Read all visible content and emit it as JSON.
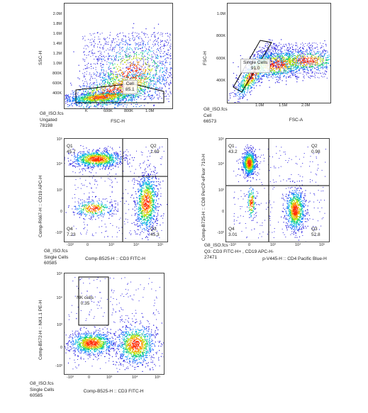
{
  "panels": [
    {
      "xlabel": "FSC-H",
      "ylabel": "SSC-H",
      "xticks": [
        "K",
        "600K",
        "800K",
        "1.0M"
      ],
      "yticks": [
        "2.0M",
        "1.8M",
        "1.6M",
        "1.4M",
        "1.2M",
        "1.0M",
        "800K",
        "600K",
        "400K"
      ],
      "gate": {
        "name": "Cell",
        "value": "85.1"
      },
      "info": [
        "G8_ISO.fcs",
        "Ungated",
        "78198"
      ]
    },
    {
      "xlabel": "FSC-A",
      "ylabel": "FSC-H",
      "xticks": [
        "1.0M",
        "1.5M",
        "2.0M"
      ],
      "yticks": [
        "1.0M",
        "800K",
        "600K",
        "400K"
      ],
      "gate": {
        "name": "Single Cells",
        "value": "91.0"
      },
      "info": [
        "G8_ISO.fcs",
        "Cell",
        "66573"
      ]
    },
    {
      "xlabel": "Comp-B525-H :: CD3 FITC-H",
      "ylabel": "Comp-R667-H :: CD19 APC-H",
      "xticks": [
        "-10³",
        "0",
        "10³",
        "10⁴",
        "10⁵"
      ],
      "yticks": [
        "10⁵",
        "10⁴",
        "10³",
        "0",
        "-10³"
      ],
      "quadrants": [
        {
          "name": "Q1",
          "value": "45.7"
        },
        {
          "name": "Q2",
          "value": "1.69"
        },
        {
          "name": "Q3",
          "value": "45.3"
        },
        {
          "name": "Q4",
          "value": "7.23"
        }
      ],
      "info": [
        "G8_ISO.fcs",
        "Single Cells",
        "60585"
      ]
    },
    {
      "xlabel": "p-V445-H :: CD4 Pacific Blue-H",
      "ylabel": "Comp-B725-H :: CD8 PerCP-eFluor 710-H",
      "xticks": [
        "-10³",
        "0",
        "10³",
        "10⁴",
        "10⁵"
      ],
      "yticks": [
        "10⁵",
        "10⁴",
        "10³",
        "0",
        "-10³"
      ],
      "quadrants": [
        {
          "name": "Q1",
          "value": "43.2"
        },
        {
          "name": "Q2",
          "value": "0.98"
        },
        {
          "name": "Q3",
          "value": "52.8"
        },
        {
          "name": "Q4",
          "value": "3.01"
        }
      ],
      "info": [
        "G8_ISO.fcs",
        "Q3: CD3 FITC-H+ , CD19 APC-H-",
        "27471"
      ]
    },
    {
      "xlabel": "Comp-B525-H :: CD3 FITC-H",
      "ylabel": "Comp-B572-H :: NK1.1 PE-H",
      "xticks": [
        "-10³",
        "0",
        "10³",
        "10⁴",
        "10⁵"
      ],
      "yticks": [
        "10⁵",
        "10⁴",
        "10³",
        "0",
        "-10³"
      ],
      "gate": {
        "name": "NK cells",
        "value": "0.35"
      },
      "info": [
        "G8_ISO.fcs",
        "Single Cells",
        "60585"
      ]
    }
  ],
  "chart_data": [
    {
      "type": "scatter",
      "xlabel": "FSC-H",
      "ylabel": "SSC-H",
      "x_ticks": [
        "K",
        "600K",
        "800K",
        "1.0M"
      ],
      "y_ticks": [
        "2.0M",
        "1.8M",
        "1.6M",
        "1.4M",
        "1.2M",
        "1.0M",
        "800K",
        "600K",
        "400K"
      ],
      "populations": [
        {
          "name": "Cell",
          "percent": 85.1
        }
      ],
      "events": 78198
    },
    {
      "type": "scatter",
      "xlabel": "FSC-A",
      "ylabel": "FSC-H",
      "x_ticks": [
        "1.0M",
        "1.5M",
        "2.0M"
      ],
      "y_ticks": [
        "1.0M",
        "800K",
        "600K",
        "400K"
      ],
      "populations": [
        {
          "name": "Single Cells",
          "percent": 91.0
        }
      ],
      "events": 66573
    },
    {
      "type": "scatter",
      "xlabel": "Comp-B525-H :: CD3 FITC-H",
      "ylabel": "Comp-R667-H :: CD19 APC-H",
      "populations": [
        {
          "name": "Q1",
          "percent": 45.7
        },
        {
          "name": "Q2",
          "percent": 1.69
        },
        {
          "name": "Q3",
          "percent": 45.3
        },
        {
          "name": "Q4",
          "percent": 7.23
        }
      ],
      "events": 60585
    },
    {
      "type": "scatter",
      "xlabel": "p-V445-H :: CD4 Pacific Blue-H",
      "ylabel": "Comp-B725-H :: CD8 PerCP-eFluor 710-H",
      "populations": [
        {
          "name": "Q1",
          "percent": 43.2
        },
        {
          "name": "Q2",
          "percent": 0.98
        },
        {
          "name": "Q3",
          "percent": 52.8
        },
        {
          "name": "Q4",
          "percent": 3.01
        }
      ],
      "events": 27471
    },
    {
      "type": "scatter",
      "xlabel": "Comp-B525-H :: CD3 FITC-H",
      "ylabel": "Comp-B572-H :: NK1.1 PE-H",
      "populations": [
        {
          "name": "NK cells",
          "percent": 0.35
        }
      ],
      "events": 60585
    }
  ],
  "colors": {
    "frame": "#444444",
    "gate": "#000000",
    "density_low": "#1a1aff",
    "density_mid": "#00c8c8",
    "density_high": "#ff2000"
  }
}
